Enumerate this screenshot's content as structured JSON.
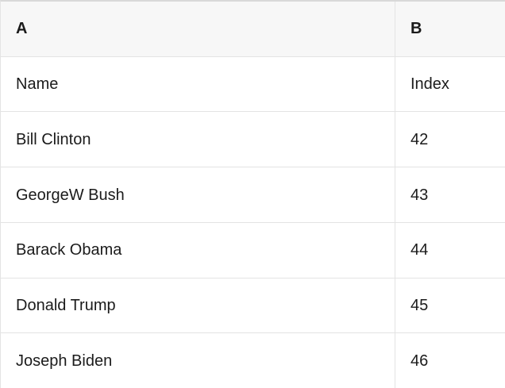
{
  "table": {
    "kind": "spreadsheet-preview",
    "column_headers": [
      "A",
      "B"
    ],
    "rows": [
      {
        "a": "Name",
        "b": "Index"
      },
      {
        "a": "Bill Clinton",
        "b": "42"
      },
      {
        "a": "GeorgeW Bush",
        "b": "43"
      },
      {
        "a": "Barack Obama",
        "b": "44"
      },
      {
        "a": "Donald Trump",
        "b": "45"
      },
      {
        "a": "Joseph Biden",
        "b": "46"
      }
    ]
  },
  "colors": {
    "header_background": "#f7f7f7",
    "row_background": "#ffffff",
    "grid_border": "#e3e3e3",
    "top_border": "#d9d9d9",
    "text": "#1b1b1b"
  }
}
